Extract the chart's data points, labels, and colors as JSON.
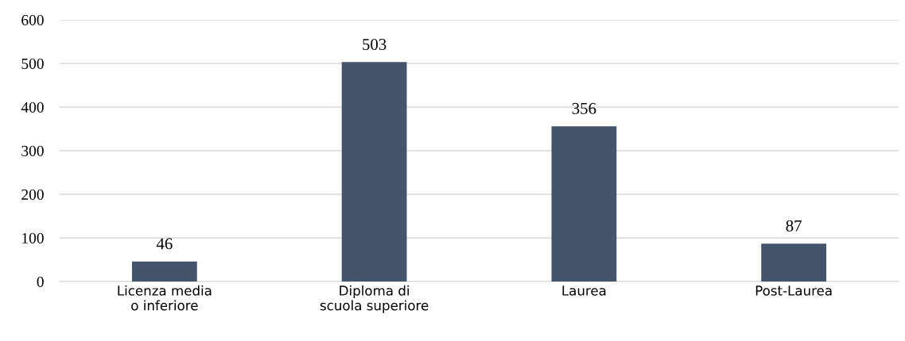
{
  "chart_data": {
    "type": "bar",
    "categories": [
      "Licenza media\no inferiore",
      "Diploma di\nscuola superiore",
      "Laurea",
      "Post-Laurea"
    ],
    "values": [
      46,
      503,
      356,
      87
    ],
    "color": "#44546a",
    "ylim": [
      0,
      600
    ],
    "yticks": [
      0,
      100,
      200,
      300,
      400,
      500,
      600
    ],
    "grid": "y",
    "data_labels": true
  }
}
